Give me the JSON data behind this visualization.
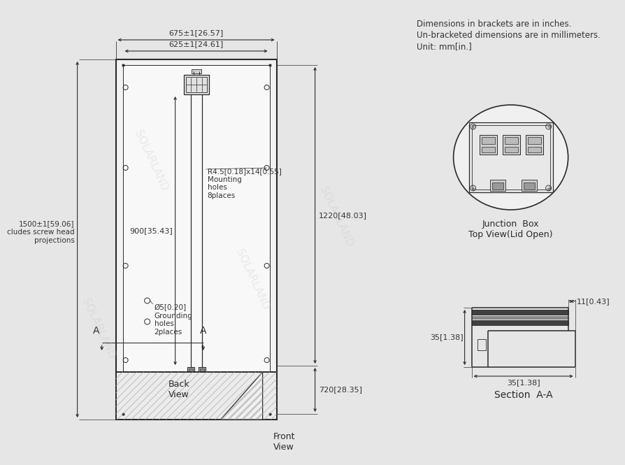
{
  "bg_color": "#e6e6e6",
  "line_color": "#2a2a2a",
  "dim_color": "#333333",
  "title_note": [
    "Dimensions in brackets are in inches.",
    "Un-bracketed dimensions are in millimeters.",
    "Unit: mm[in.]"
  ],
  "dim_675": "675±1[26.57]",
  "dim_625": "625±1[24.61]",
  "dim_1220": "1220[48.03]",
  "dim_900": "900[35.43]",
  "dim_720": "720[28.35]",
  "dim_1500": "1500±1[59.06]\ncludes screw head\nprojections",
  "dim_r45": "R4.5[0.18]x14[0.55]\nMounting\nholes\n8places",
  "dim_grounding": "Ø5[0.20]\nGrounding\nholes\n2places",
  "dim_11": "11[0.43]",
  "dim_35a": "35[1.38]",
  "dim_35b": "35[1.38]",
  "label_back": "Back\nView",
  "label_front": "Front\nView",
  "label_junction": "Junction  Box\nTop View(Lid Open)",
  "label_section": "Section  A-A",
  "label_A1": "A",
  "label_A2": "A"
}
